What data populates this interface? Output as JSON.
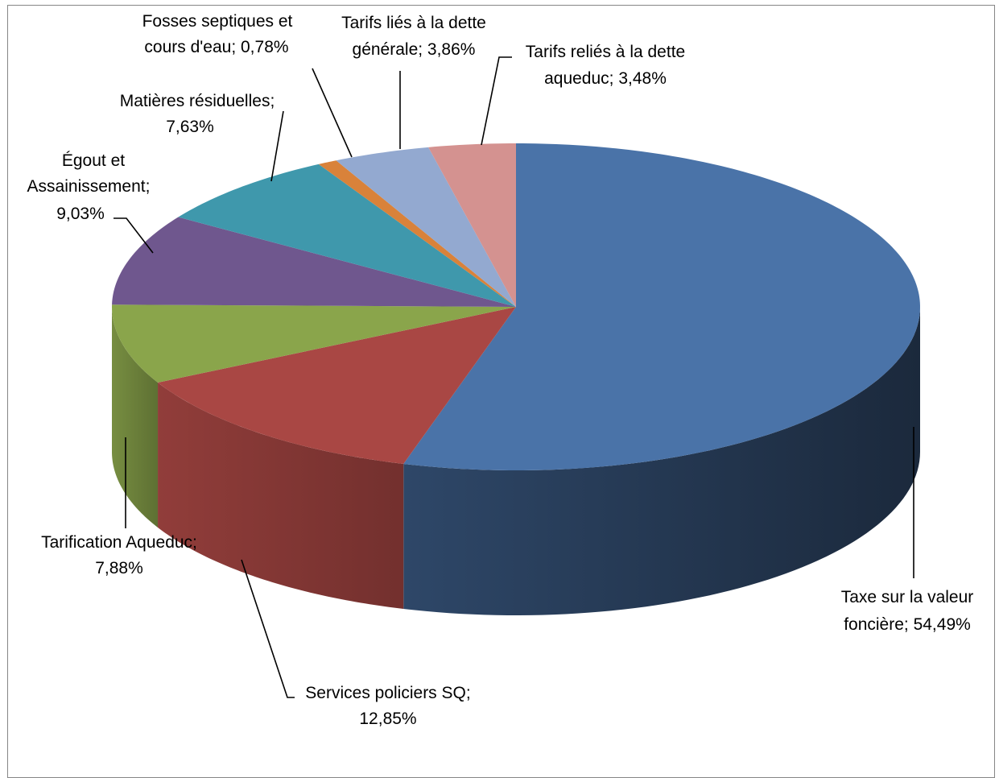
{
  "chart_data": {
    "type": "pie",
    "style": "3d",
    "title": "",
    "slices": [
      {
        "label_lines": [
          "Taxe sur la valeur",
          "foncière; 54,49%"
        ],
        "name": "Taxe sur la valeur foncière",
        "value": 54.49,
        "color": "#4a73a8"
      },
      {
        "label_lines": [
          "Services policiers SQ;",
          "12,85%"
        ],
        "name": "Services policiers SQ",
        "value": 12.85,
        "color": "#a94744"
      },
      {
        "label_lines": [
          "Tarification Aqueduc;",
          "7,88%"
        ],
        "name": "Tarification Aqueduc",
        "value": 7.88,
        "color": "#8aa54b"
      },
      {
        "label_lines": [
          "Égout et",
          "Assainissement;",
          "9,03%"
        ],
        "name": "Égout et Assainissement",
        "value": 9.03,
        "color": "#6f578e"
      },
      {
        "label_lines": [
          "Matières résiduelles;",
          "7,63%"
        ],
        "name": "Matières résiduelles",
        "value": 7.63,
        "color": "#3f98ac"
      },
      {
        "label_lines": [
          "Fosses septiques et",
          "cours d'eau; 0,78%"
        ],
        "name": "Fosses septiques et cours d'eau",
        "value": 0.78,
        "color": "#d9823a"
      },
      {
        "label_lines": [
          "Tarifs liés à la dette",
          "générale; 3,86%"
        ],
        "name": "Tarifs liés à la dette générale",
        "value": 3.86,
        "color": "#93a9d0"
      },
      {
        "label_lines": [
          "Tarifs reliés à la dette",
          "aqueduc; 3,48%"
        ],
        "name": "Tarifs reliés à la dette aqueduc",
        "value": 3.48,
        "color": "#d49290"
      }
    ]
  }
}
